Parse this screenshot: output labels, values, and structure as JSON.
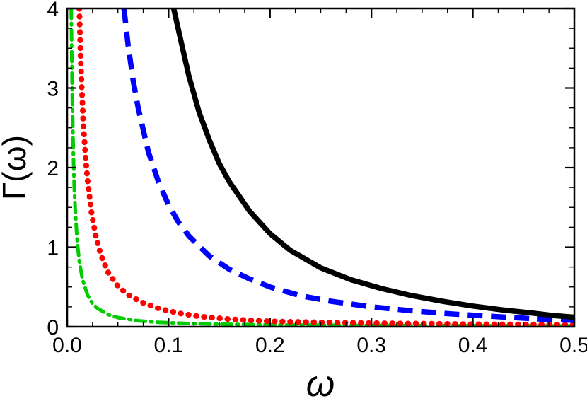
{
  "figure": {
    "background": "#ffffff"
  },
  "chart_data": {
    "type": "line",
    "title": "",
    "xlabel": "ω",
    "ylabel": "Γ(ω)",
    "xlim": [
      0,
      0.5
    ],
    "ylim": [
      0,
      4
    ],
    "grid": false,
    "frame": true,
    "legend": null,
    "xticks": {
      "major": [
        0,
        0.1,
        0.2,
        0.3,
        0.4,
        0.5
      ],
      "labels": [
        "0.0",
        "0.1",
        "0.2",
        "0.3",
        "0.4",
        "0.5"
      ],
      "minor": [
        0.025,
        0.05,
        0.075,
        0.125,
        0.15,
        0.175,
        0.225,
        0.25,
        0.275,
        0.325,
        0.35,
        0.375,
        0.425,
        0.45,
        0.475
      ]
    },
    "yticks": {
      "major": [
        0,
        1,
        2,
        3,
        4
      ],
      "labels": [
        "0",
        "1",
        "2",
        "3",
        "4"
      ],
      "minor": [
        0.25,
        0.5,
        0.75,
        1.25,
        1.5,
        1.75,
        2.25,
        2.5,
        2.75,
        3.25,
        3.5,
        3.75
      ]
    },
    "series": [
      {
        "name": "green-dashdot",
        "color": "#00CC00",
        "style": "dashdot",
        "width": 5,
        "points": [
          [
            0.004,
            4
          ],
          [
            0.0045,
            3.4
          ],
          [
            0.005,
            2.9
          ],
          [
            0.006,
            2.2
          ],
          [
            0.007,
            1.75
          ],
          [
            0.008,
            1.45
          ],
          [
            0.01,
            1.05
          ],
          [
            0.012,
            0.82
          ],
          [
            0.015,
            0.6
          ],
          [
            0.02,
            0.4
          ],
          [
            0.025,
            0.29
          ],
          [
            0.03,
            0.23
          ],
          [
            0.04,
            0.155
          ],
          [
            0.05,
            0.115
          ],
          [
            0.07,
            0.075
          ],
          [
            0.09,
            0.055
          ],
          [
            0.12,
            0.04
          ],
          [
            0.16,
            0.03
          ],
          [
            0.22,
            0.022
          ],
          [
            0.3,
            0.016
          ],
          [
            0.4,
            0.012
          ],
          [
            0.5,
            0.01
          ]
        ]
      },
      {
        "name": "red-dotted",
        "color": "#FF0000",
        "style": "dotted",
        "width": 8,
        "points": [
          [
            0.012,
            4
          ],
          [
            0.013,
            3.5
          ],
          [
            0.014,
            3.1
          ],
          [
            0.016,
            2.55
          ],
          [
            0.018,
            2.15
          ],
          [
            0.02,
            1.85
          ],
          [
            0.024,
            1.43
          ],
          [
            0.028,
            1.15
          ],
          [
            0.033,
            0.91
          ],
          [
            0.04,
            0.69
          ],
          [
            0.05,
            0.51
          ],
          [
            0.06,
            0.4
          ],
          [
            0.075,
            0.3
          ],
          [
            0.09,
            0.23
          ],
          [
            0.11,
            0.17
          ],
          [
            0.13,
            0.13
          ],
          [
            0.16,
            0.095
          ],
          [
            0.2,
            0.068
          ],
          [
            0.25,
            0.055
          ],
          [
            0.3,
            0.045
          ],
          [
            0.4,
            0.032
          ],
          [
            0.5,
            0.025
          ]
        ]
      },
      {
        "name": "blue-dashed",
        "color": "#0000FF",
        "style": "dashed",
        "width": 7.5,
        "points": [
          [
            0.056,
            4
          ],
          [
            0.06,
            3.55
          ],
          [
            0.065,
            3.1
          ],
          [
            0.07,
            2.75
          ],
          [
            0.08,
            2.2
          ],
          [
            0.09,
            1.82
          ],
          [
            0.1,
            1.53
          ],
          [
            0.11,
            1.31
          ],
          [
            0.12,
            1.14
          ],
          [
            0.14,
            0.89
          ],
          [
            0.16,
            0.72
          ],
          [
            0.18,
            0.6
          ],
          [
            0.2,
            0.5
          ],
          [
            0.23,
            0.39
          ],
          [
            0.26,
            0.32
          ],
          [
            0.3,
            0.25
          ],
          [
            0.34,
            0.2
          ],
          [
            0.38,
            0.16
          ],
          [
            0.42,
            0.13
          ],
          [
            0.46,
            0.1
          ],
          [
            0.5,
            0.08
          ]
        ]
      },
      {
        "name": "black-solid",
        "color": "#000000",
        "style": "solid",
        "width": 7.5,
        "points": [
          [
            0.105,
            4
          ],
          [
            0.112,
            3.6
          ],
          [
            0.12,
            3.15
          ],
          [
            0.13,
            2.7
          ],
          [
            0.14,
            2.35
          ],
          [
            0.15,
            2.05
          ],
          [
            0.16,
            1.82
          ],
          [
            0.18,
            1.45
          ],
          [
            0.2,
            1.17
          ],
          [
            0.22,
            0.96
          ],
          [
            0.25,
            0.74
          ],
          [
            0.28,
            0.59
          ],
          [
            0.31,
            0.48
          ],
          [
            0.34,
            0.39
          ],
          [
            0.37,
            0.32
          ],
          [
            0.4,
            0.26
          ],
          [
            0.43,
            0.21
          ],
          [
            0.46,
            0.17
          ],
          [
            0.48,
            0.14
          ],
          [
            0.5,
            0.12
          ]
        ]
      }
    ]
  }
}
